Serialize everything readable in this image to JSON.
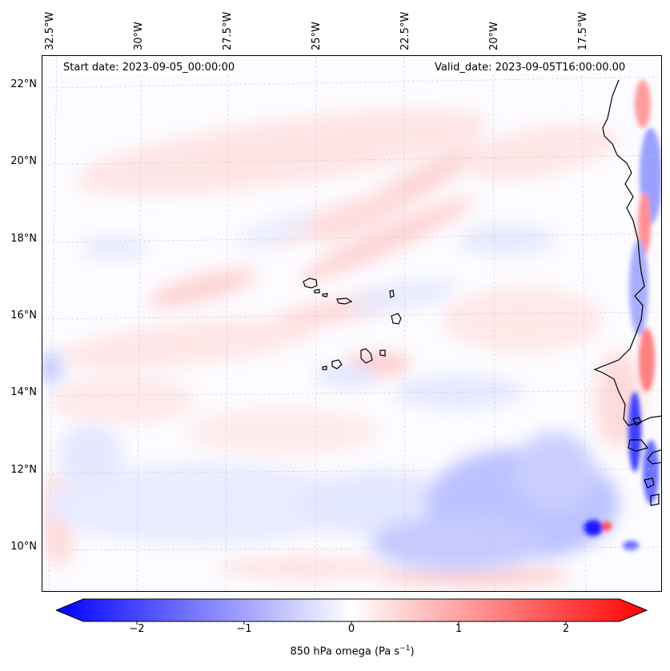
{
  "map": {
    "start_date": "Start date: 2023-09-05_00:00:00",
    "valid_date": "Valid_date: 2023-09-05T16:00:00.00",
    "lon_labels": [
      "32.5°W",
      "30°W",
      "27.5°W",
      "25°W",
      "22.5°W",
      "20°W",
      "17.5°W"
    ],
    "lat_labels": [
      "22°N",
      "20°N",
      "18°N",
      "16°N",
      "14°N",
      "12°N",
      "10°N"
    ],
    "field": "850 hPa omega",
    "colors": {
      "positive": "#ff0000",
      "negative": "#0000ff",
      "neutral": "#ffffff",
      "coast": "#000000"
    }
  },
  "colorbar": {
    "ticks": [
      "−2",
      "−1",
      "0",
      "1",
      "2"
    ],
    "tick_values": [
      -2,
      -1,
      0,
      1,
      2
    ],
    "range": [
      -2.5,
      2.5
    ],
    "label_main": "850 hPa omega (Pa s",
    "label_sup": "−1",
    "label_end": ")"
  }
}
